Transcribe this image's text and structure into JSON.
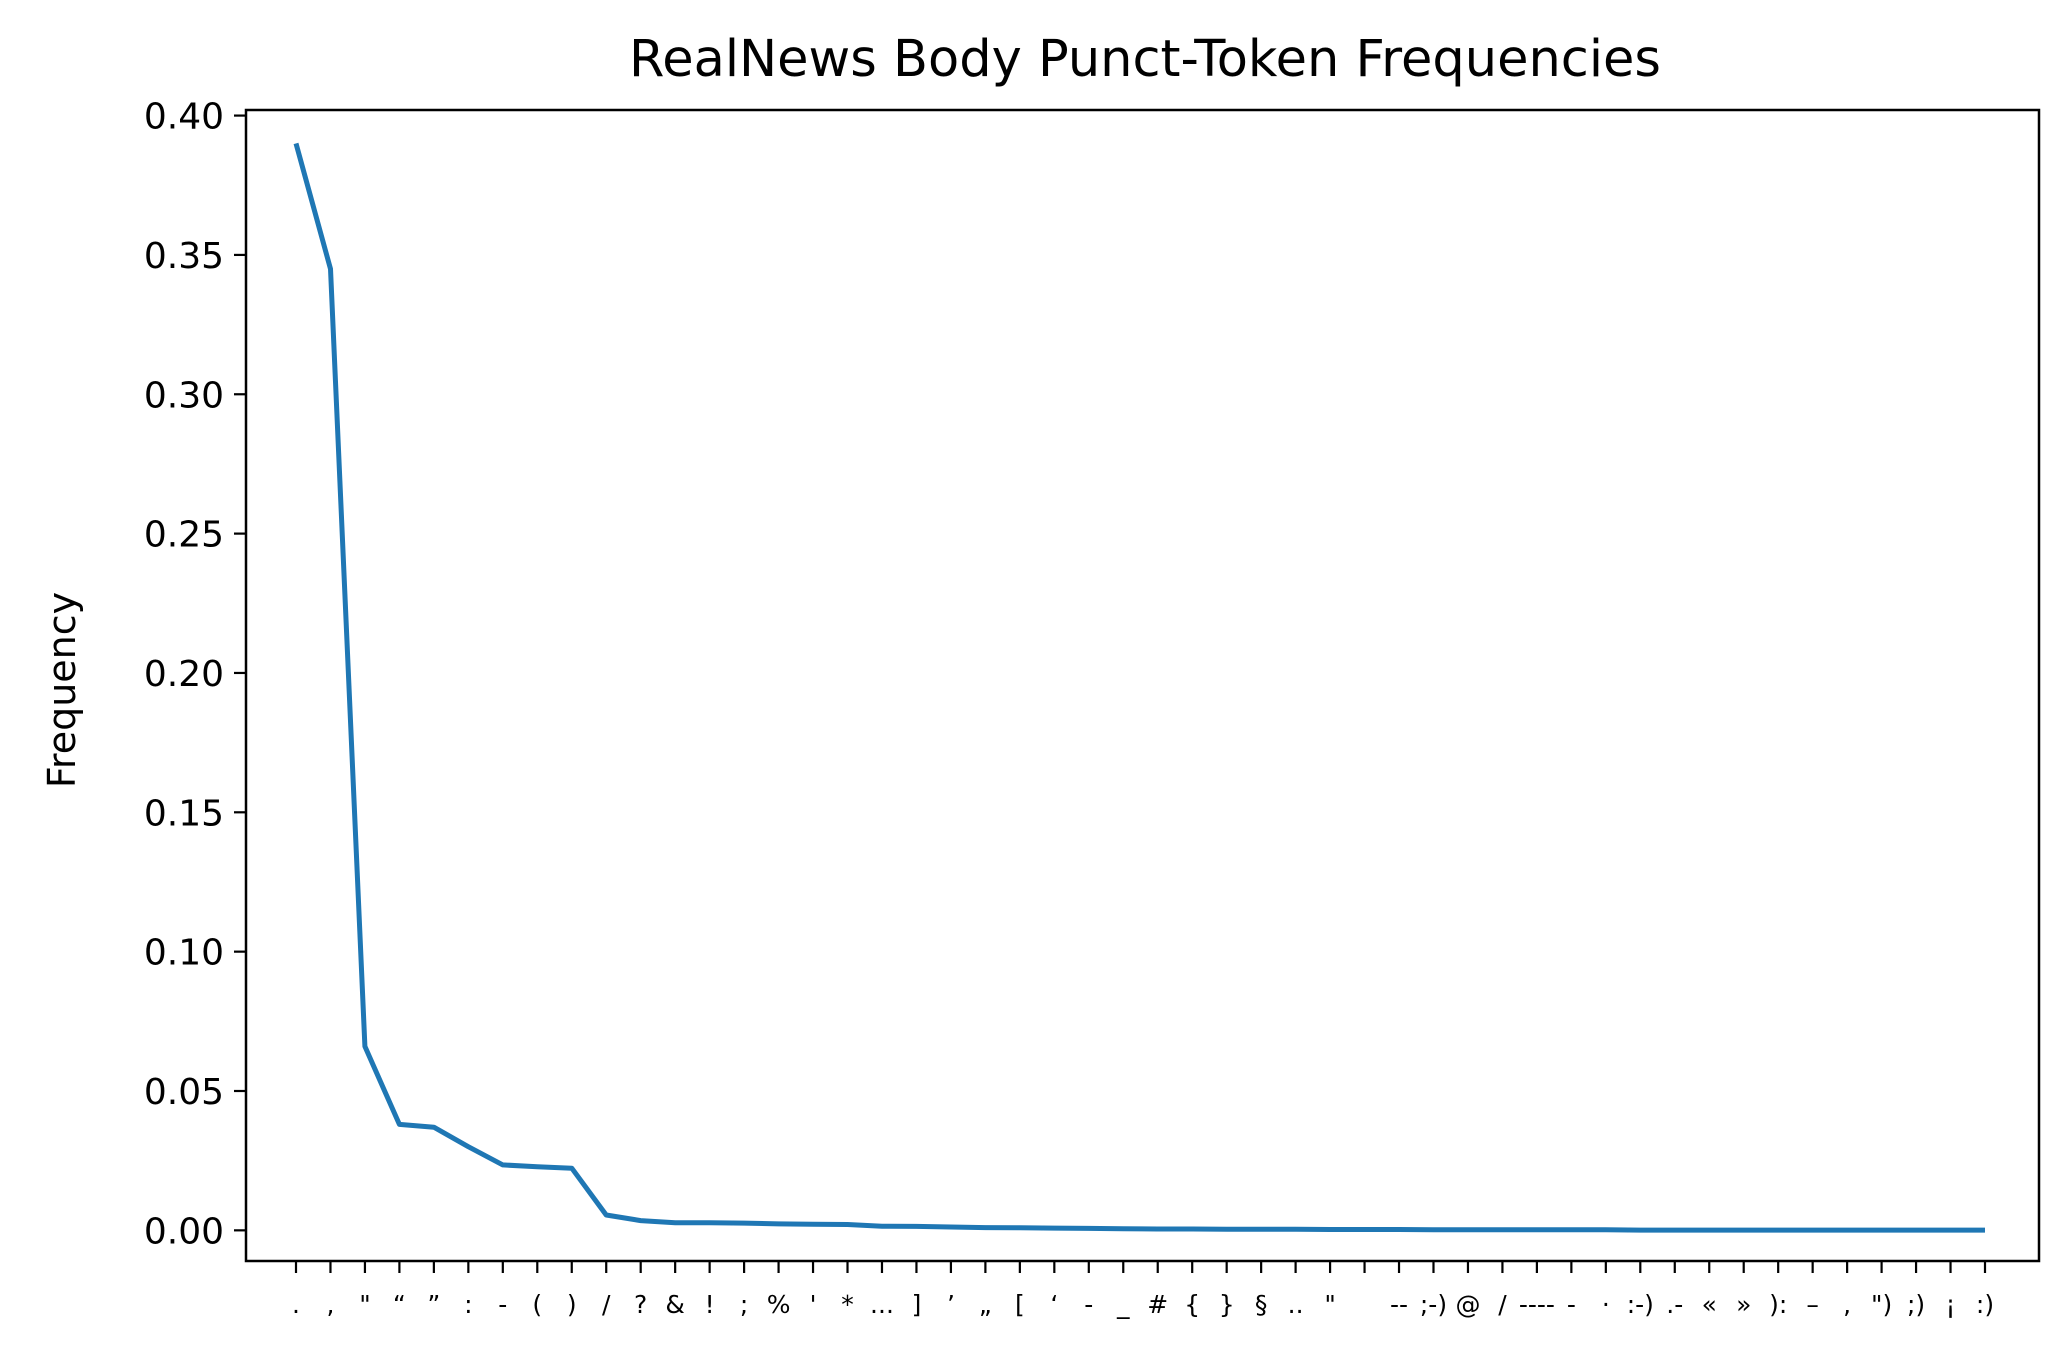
{
  "chart_data": {
    "type": "line",
    "title": "RealNews Body Punct-Token Frequencies",
    "xlabel": "",
    "ylabel": "Frequency",
    "ylim": [
      -0.011,
      0.402
    ],
    "grid": false,
    "legend": "none",
    "yticks": [
      "0.00",
      "0.05",
      "0.10",
      "0.15",
      "0.20",
      "0.25",
      "0.30",
      "0.35",
      "0.40"
    ],
    "ytick_values": [
      0.0,
      0.05,
      0.1,
      0.15,
      0.2,
      0.25,
      0.3,
      0.35,
      0.4
    ],
    "categories": [
      ".",
      ",",
      "\"",
      "“",
      "”",
      ":",
      "-",
      "(",
      ")",
      "/",
      "?",
      "&",
      "!",
      ";",
      "%",
      "'",
      "*",
      "...",
      "]",
      "’",
      "„",
      "[",
      "‘",
      "-",
      "_",
      "#",
      "{",
      "}",
      "§",
      "..",
      "\"",
      "",
      "--",
      ";-)",
      "@",
      "/",
      "----",
      "-",
      "·",
      ":-)",
      ".-",
      "«",
      "»",
      "):",
      "–",
      ",",
      "\")",
      ";)",
      "¡",
      ":)"
    ],
    "series": [
      {
        "color": "#1f77b4",
        "values": [
          0.39,
          0.345,
          0.066,
          0.038,
          0.037,
          0.03,
          0.0235,
          0.0228,
          0.0223,
          0.0055,
          0.0035,
          0.0027,
          0.0027,
          0.0026,
          0.0023,
          0.0022,
          0.0021,
          0.0015,
          0.0014,
          0.0012,
          0.001,
          0.0009,
          0.0008,
          0.0007,
          0.0006,
          0.0005,
          0.0005,
          0.0004,
          0.0004,
          0.0004,
          0.0003,
          0.0003,
          0.0003,
          0.0002,
          0.0002,
          0.0002,
          0.0002,
          0.0002,
          0.0002,
          0.0001,
          0.0001,
          0.0001,
          0.0001,
          0.0001,
          0.0001,
          0.0001,
          0.0001,
          0.0001,
          0.0001,
          0.0001
        ]
      }
    ]
  }
}
